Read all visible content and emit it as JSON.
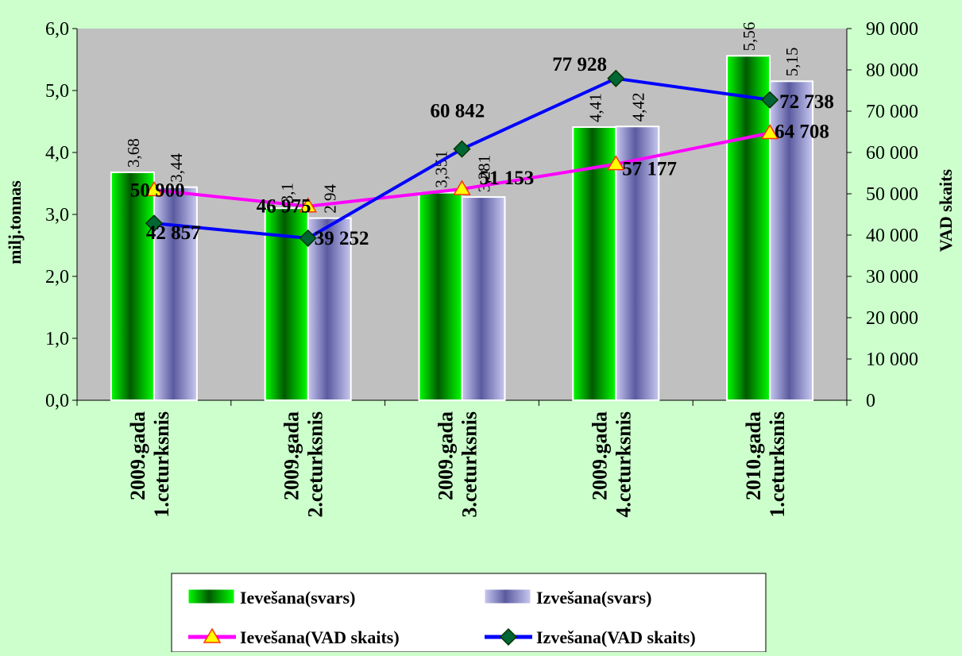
{
  "chart_data": {
    "type": "bar",
    "categories": [
      [
        "2009.gada",
        "1.ceturksnis"
      ],
      [
        "2009.gada",
        "2.ceturksnis"
      ],
      [
        "2009.gada",
        "3.ceturksnis"
      ],
      [
        "2009.gada",
        "4.ceturksnis"
      ],
      [
        "2010.gada",
        "1.ceturksnis"
      ]
    ],
    "y_left": {
      "label": "milj.tonnas",
      "ylim": [
        0,
        6
      ],
      "ticks": [
        "0,0",
        "1,0",
        "2,0",
        "3,0",
        "4,0",
        "5,0",
        "6,0"
      ]
    },
    "y_right": {
      "label": "VAD skaits",
      "ylim": [
        0,
        90000
      ],
      "ticks": [
        "0",
        "10 000",
        "20 000",
        "30 000",
        "40 000",
        "50 000",
        "60 000",
        "70 000",
        "80 000",
        "90 000"
      ]
    },
    "series": [
      {
        "name": "Ievešana(svars)",
        "type": "bar",
        "axis": "left",
        "color": "#00cc00",
        "values": [
          3.68,
          3.1,
          3.351,
          4.41,
          5.56
        ],
        "labels": [
          "3,68",
          "3,1",
          "3,351",
          "4,41",
          "5,56"
        ]
      },
      {
        "name": "Izvešana(svars)",
        "type": "bar",
        "axis": "left",
        "color": "#8080c8",
        "values": [
          3.44,
          2.94,
          3.281,
          4.42,
          5.15
        ],
        "labels": [
          "3,44",
          "2,94",
          "3,281",
          "4,42",
          "5,15"
        ]
      },
      {
        "name": "Ievešana(VAD skaits)",
        "type": "line",
        "axis": "right",
        "color": "#ff00ff",
        "marker": "triangle",
        "marker_color": "#ffff00",
        "values": [
          50900,
          46975,
          51153,
          57177,
          64708
        ],
        "labels": [
          "50 900",
          "46 975",
          "51 153",
          "57 177",
          "64 708"
        ]
      },
      {
        "name": "Izvešana(VAD skaits)",
        "type": "line",
        "axis": "right",
        "color": "#0000ff",
        "marker": "diamond",
        "marker_color": "#006633",
        "values": [
          42857,
          39252,
          60842,
          77928,
          72738
        ],
        "labels": [
          "42 857",
          "39 252",
          "60 842",
          "77 928",
          "72 738"
        ]
      }
    ],
    "legend": {
      "placement": "bottom"
    },
    "grid": false
  }
}
